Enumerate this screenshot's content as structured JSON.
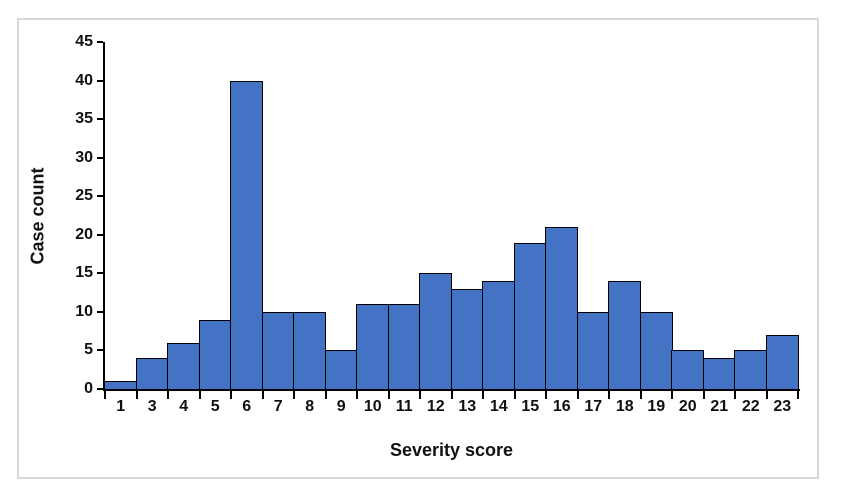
{
  "chart_data": {
    "type": "bar",
    "title": "",
    "categories": [
      "1",
      "3",
      "4",
      "5",
      "6",
      "7",
      "8",
      "9",
      "10",
      "11",
      "12",
      "13",
      "14",
      "15",
      "16",
      "17",
      "18",
      "19",
      "20",
      "21",
      "22",
      "23"
    ],
    "values": [
      1,
      4,
      6,
      9,
      40,
      10,
      10,
      5,
      11,
      11,
      15,
      13,
      14,
      19,
      21,
      10,
      14,
      10,
      5,
      4,
      5,
      7
    ],
    "xlabel": "Severity score",
    "ylabel": "Case count",
    "ylim": [
      0,
      45
    ],
    "yticks": [
      0,
      5,
      10,
      15,
      20,
      25,
      30,
      35,
      40,
      45
    ],
    "grid": false,
    "legend": false,
    "bar_fill": "#4472C4",
    "bar_border": "#000000",
    "axis_color": "#000000",
    "figure_border_color": "#D9D9D9"
  }
}
